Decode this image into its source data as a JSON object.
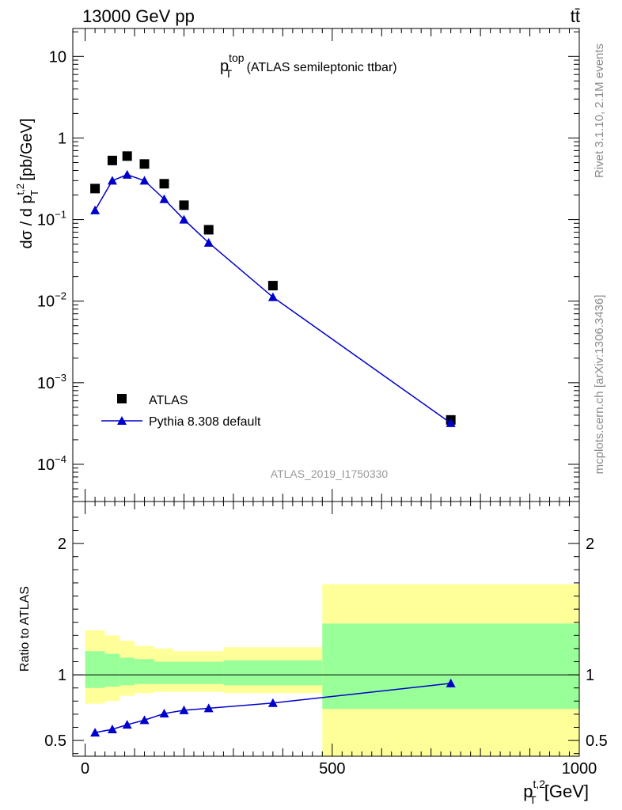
{
  "header": {
    "energy_label": "13000 GeV pp",
    "process_label": "tt̄",
    "plot_title_main": "p",
    "plot_title_sub": "T",
    "plot_title_sup": "top",
    "plot_title_rest": " (ATLAS semileptonic ttbar)",
    "analysis_id": "ATLAS_2019_I1750330",
    "rivet_label": "Rivet 3.1.10,  2.1M events",
    "mcplots_label": "mcplots.cern.ch [arXiv:1306.3436]"
  },
  "axes": {
    "ylabel_main": "dσ / d p",
    "ylabel_main_sub": "T",
    "ylabel_main_sup": "t,2",
    "ylabel_main_unit": " [pb/GeV]",
    "ylabel_ratio": "Ratio to ATLAS",
    "xlabel_main": "p",
    "xlabel_sub": "T",
    "xlabel_sup": "t,2",
    "xlabel_unit": " [GeV]",
    "main_ticks": [
      "10",
      "1",
      "10",
      "10",
      "10",
      "10"
    ],
    "main_tick_exps": [
      "",
      "",
      "−1",
      "−2",
      "−3",
      "−4"
    ],
    "ratio_ticks": [
      "0.5",
      "1",
      "2"
    ],
    "x_ticks": [
      "0",
      "500",
      "1000"
    ]
  },
  "legend": {
    "data_label": "ATLAS",
    "mc_label": "Pythia 8.308 default"
  },
  "chart_data": [
    {
      "type": "scatter",
      "panel": "main",
      "xlim": [
        -25,
        1000
      ],
      "ylim": [
        3.5e-05,
        22
      ],
      "log_y": true,
      "series": [
        {
          "name": "ATLAS",
          "color": "#000000",
          "marker": "square",
          "x": [
            20,
            55,
            85,
            120,
            160,
            200,
            250,
            380,
            740
          ],
          "y": [
            0.24,
            0.53,
            0.6,
            0.48,
            0.275,
            0.15,
            0.075,
            0.0155,
            0.00035
          ]
        },
        {
          "name": "Pythia 8.308 default",
          "color": "#0000cc",
          "marker": "triangle",
          "x": [
            20,
            55,
            85,
            120,
            160,
            200,
            250,
            380,
            740
          ],
          "y": [
            0.13,
            0.3,
            0.355,
            0.3,
            0.178,
            0.1,
            0.052,
            0.0112,
            0.00032
          ]
        }
      ]
    },
    {
      "type": "line",
      "panel": "ratio",
      "xlim": [
        -25,
        1000
      ],
      "ylim": [
        0.38,
        2.32
      ],
      "log_y": false,
      "reference": 1,
      "bins": [
        {
          "lo": 0,
          "hi": 40,
          "inner": [
            0.9,
            1.18
          ],
          "outer": [
            0.78,
            1.34
          ]
        },
        {
          "lo": 40,
          "hi": 70,
          "inner": [
            0.91,
            1.16
          ],
          "outer": [
            0.8,
            1.3
          ]
        },
        {
          "lo": 70,
          "hi": 100,
          "inner": [
            0.92,
            1.13
          ],
          "outer": [
            0.84,
            1.26
          ]
        },
        {
          "lo": 100,
          "hi": 140,
          "inner": [
            0.93,
            1.12
          ],
          "outer": [
            0.86,
            1.22
          ]
        },
        {
          "lo": 140,
          "hi": 180,
          "inner": [
            0.93,
            1.1
          ],
          "outer": [
            0.87,
            1.2
          ]
        },
        {
          "lo": 180,
          "hi": 220,
          "inner": [
            0.93,
            1.1
          ],
          "outer": [
            0.87,
            1.18
          ]
        },
        {
          "lo": 220,
          "hi": 280,
          "inner": [
            0.93,
            1.1
          ],
          "outer": [
            0.87,
            1.18
          ]
        },
        {
          "lo": 280,
          "hi": 480,
          "inner": [
            0.92,
            1.11
          ],
          "outer": [
            0.86,
            1.21
          ]
        },
        {
          "lo": 480,
          "hi": 1000,
          "inner": [
            0.74,
            1.39
          ],
          "outer": [
            0.38,
            1.69
          ]
        }
      ],
      "series": [
        {
          "name": "Pythia 8.308 default",
          "color": "#0000cc",
          "x": [
            20,
            55,
            85,
            120,
            160,
            200,
            250,
            380,
            740
          ],
          "y": [
            0.56,
            0.585,
            0.62,
            0.655,
            0.705,
            0.73,
            0.745,
            0.785,
            0.935
          ],
          "err": [
            0,
            0,
            0,
            0,
            0,
            0,
            0,
            0,
            0.03
          ]
        }
      ]
    }
  ]
}
